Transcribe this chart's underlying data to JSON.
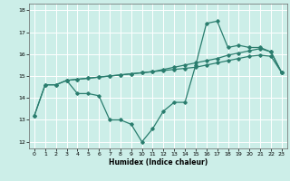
{
  "xlabel": "Humidex (Indice chaleur)",
  "xlim": [
    -0.5,
    23.5
  ],
  "ylim": [
    11.7,
    18.3
  ],
  "yticks": [
    12,
    13,
    14,
    15,
    16,
    17,
    18
  ],
  "xticks": [
    0,
    1,
    2,
    3,
    4,
    5,
    6,
    7,
    8,
    9,
    10,
    11,
    12,
    13,
    14,
    15,
    16,
    17,
    18,
    19,
    20,
    21,
    22,
    23
  ],
  "bg_color": "#cceee8",
  "grid_color": "#ffffff",
  "line_color": "#2a7d6e",
  "series1_x": [
    0,
    1,
    2,
    3,
    4,
    5,
    6,
    7,
    8,
    9,
    10,
    11,
    12,
    13,
    14,
    15,
    16,
    17,
    18,
    19,
    20,
    21,
    22,
    23
  ],
  "series1_y": [
    13.2,
    14.6,
    14.6,
    14.8,
    14.2,
    14.2,
    14.1,
    13.0,
    13.0,
    12.8,
    12.0,
    12.6,
    13.4,
    13.8,
    13.8,
    15.5,
    17.4,
    17.5,
    16.3,
    16.4,
    16.3,
    16.3,
    16.1,
    15.15
  ],
  "series2_x": [
    3,
    4,
    5,
    6,
    7,
    8,
    9,
    10,
    11,
    12,
    13,
    14,
    15,
    16,
    17,
    18,
    19,
    20,
    21,
    22,
    23
  ],
  "series2_y": [
    14.8,
    14.85,
    14.9,
    14.95,
    15.0,
    15.05,
    15.1,
    15.15,
    15.2,
    15.3,
    15.4,
    15.5,
    15.6,
    15.7,
    15.8,
    15.95,
    16.05,
    16.15,
    16.25,
    16.1,
    15.15
  ],
  "series3_x": [
    0,
    1,
    2,
    3,
    4,
    5,
    6,
    7,
    8,
    9,
    10,
    11,
    12,
    13,
    14,
    15,
    16,
    17,
    18,
    19,
    20,
    21,
    22,
    23
  ],
  "series3_y": [
    13.2,
    14.6,
    14.6,
    14.8,
    14.85,
    14.9,
    14.95,
    15.0,
    15.05,
    15.1,
    15.15,
    15.2,
    15.25,
    15.3,
    15.35,
    15.4,
    15.5,
    15.6,
    15.7,
    15.8,
    15.9,
    15.95,
    15.9,
    15.15
  ]
}
